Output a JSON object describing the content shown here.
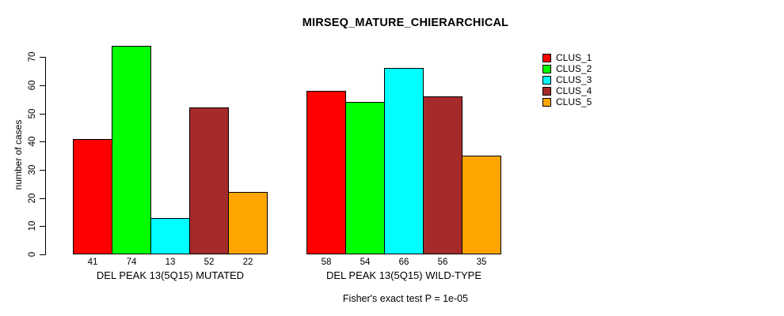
{
  "chart_data": {
    "type": "bar",
    "title": "MIRSEQ_MATURE_CHIERARCHICAL",
    "ylabel": "number of cases",
    "xlabel": "",
    "annotation": "Fisher's exact test P = 1e-05",
    "ylim": [
      0,
      70
    ],
    "yticks": [
      0,
      10,
      20,
      30,
      40,
      50,
      60,
      70
    ],
    "grid": false,
    "legend_position": "top-right",
    "bar_value_labels_shown": true,
    "categories": [
      "DEL PEAK 13(5Q15) MUTATED",
      "DEL PEAK 13(5Q15) WILD-TYPE"
    ],
    "series": [
      {
        "name": "CLUS_1",
        "color": "#FF0000",
        "values": [
          41,
          58
        ]
      },
      {
        "name": "CLUS_2",
        "color": "#00FF00",
        "values": [
          74,
          54
        ]
      },
      {
        "name": "CLUS_3",
        "color": "#00FFFF",
        "values": [
          13,
          66
        ]
      },
      {
        "name": "CLUS_4",
        "color": "#A52A2A",
        "values": [
          52,
          56
        ]
      },
      {
        "name": "CLUS_5",
        "color": "#FFA500",
        "values": [
          22,
          35
        ]
      }
    ]
  }
}
